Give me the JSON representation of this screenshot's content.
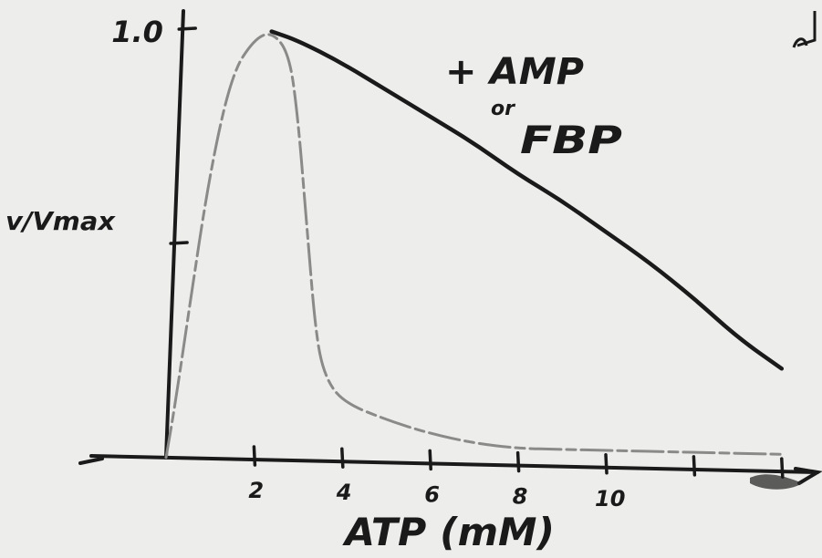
{
  "chart_data": {
    "type": "line",
    "xlabel": "ATP (mM)",
    "ylabel": "v/Vmax",
    "x_ticks": [
      {
        "value": 2,
        "label": "2"
      },
      {
        "value": 4,
        "label": "4"
      },
      {
        "value": 6,
        "label": "6"
      },
      {
        "value": 8,
        "label": "8"
      },
      {
        "value": 10,
        "label": "10"
      },
      {
        "value": 12,
        "label": ""
      },
      {
        "value": 14,
        "label": ""
      }
    ],
    "y_ticks": [
      {
        "value": 0.5,
        "label": ""
      },
      {
        "value": 1.0,
        "label": "1.0"
      }
    ],
    "xlim": [
      0,
      14.5
    ],
    "ylim": [
      0,
      1.05
    ],
    "grid": false,
    "series": [
      {
        "name": "+ AMP or FBP",
        "style": "solid",
        "color": "#1a1a1a",
        "x": [
          2.4,
          3.0,
          4.0,
          5.0,
          6.0,
          7.0,
          8.0,
          9.0,
          10.0,
          11.0,
          12.0,
          13.0,
          14.0
        ],
        "y": [
          1.0,
          0.98,
          0.93,
          0.87,
          0.81,
          0.75,
          0.68,
          0.62,
          0.55,
          0.48,
          0.4,
          0.31,
          0.24
        ]
      },
      {
        "name": "",
        "style": "dashed",
        "color": "#8a8a88",
        "x": [
          0.0,
          0.2,
          0.5,
          1.0,
          1.5,
          2.0,
          2.4,
          2.8,
          3.0,
          3.2,
          3.4,
          3.6,
          4.0,
          5.0,
          6.0,
          7.0,
          8.0,
          9.0,
          10.0,
          12.0,
          14.0
        ],
        "y": [
          0.0,
          0.12,
          0.33,
          0.67,
          0.9,
          0.98,
          1.0,
          0.95,
          0.8,
          0.55,
          0.3,
          0.2,
          0.14,
          0.1,
          0.07,
          0.05,
          0.04,
          0.04,
          0.04,
          0.04,
          0.04
        ]
      }
    ],
    "annotation": {
      "line1": "+ AMP",
      "line2": "or",
      "line3": "FBP"
    }
  }
}
